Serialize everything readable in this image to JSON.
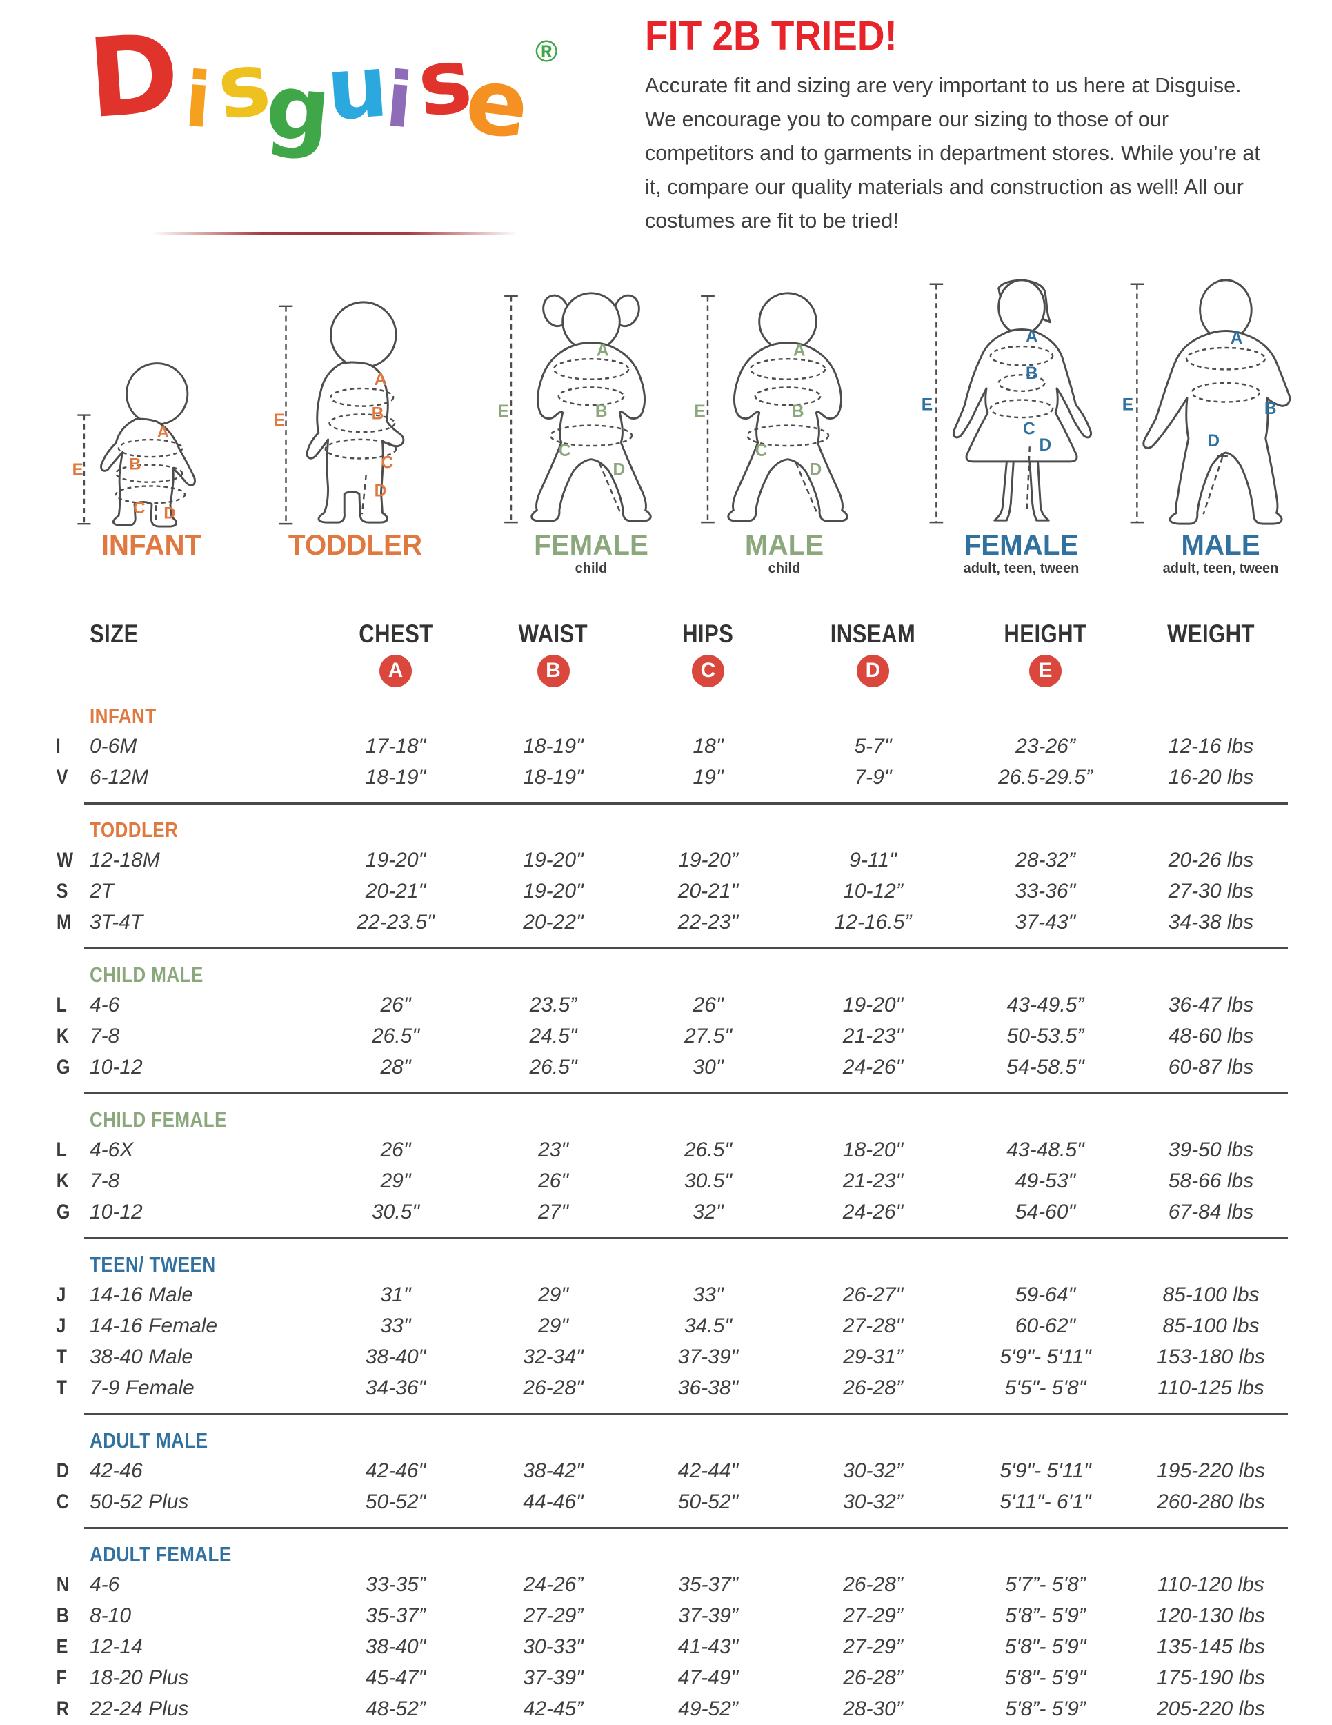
{
  "logo": {
    "letters": [
      {
        "ch": "D",
        "color": "#e0332b"
      },
      {
        "ch": "i",
        "color": "#f5a01f"
      },
      {
        "ch": "s",
        "color": "#efc11f"
      },
      {
        "ch": "g",
        "color": "#3fa748"
      },
      {
        "ch": "u",
        "color": "#2ba9df"
      },
      {
        "ch": "i",
        "color": "#8e6cb8"
      },
      {
        "ch": "s",
        "color": "#e0332b"
      },
      {
        "ch": "e",
        "color": "#f59122"
      }
    ],
    "registered": "®",
    "registered_color": "#3fa748"
  },
  "intro": {
    "title": "FIT 2B TRIED!",
    "title_color": "#e8242b",
    "body": "Accurate fit and sizing are very important to us here at Disguise. We encourage you to compare our sizing to those of our competitors and to garments in department stores. While you’re at it, compare our quality materials and construction as well! All our costumes are fit to be tried!"
  },
  "marks": [
    "A",
    "B",
    "C",
    "D",
    "E"
  ],
  "figures": [
    {
      "id": "infant",
      "title": "INFANT",
      "subtitle": "",
      "accent": "#e0793f"
    },
    {
      "id": "toddler",
      "title": "TODDLER",
      "subtitle": "",
      "accent": "#e0793f"
    },
    {
      "id": "child-female",
      "title": "FEMALE",
      "subtitle": "child",
      "accent": "#8aa87c"
    },
    {
      "id": "child-male",
      "title": "MALE",
      "subtitle": "child",
      "accent": "#8aa87c"
    },
    {
      "id": "adult-female",
      "title": "FEMALE",
      "subtitle": "adult, teen, tween",
      "accent": "#31719f"
    },
    {
      "id": "adult-male",
      "title": "MALE",
      "subtitle": "adult, teen, tween",
      "accent": "#31719f"
    }
  ],
  "table": {
    "columns": [
      "SIZE",
      "CHEST",
      "WAIST",
      "HIPS",
      "INSEAM",
      "HEIGHT",
      "WEIGHT"
    ],
    "badge_letters": [
      "A",
      "B",
      "C",
      "D",
      "E"
    ],
    "badge_color": "#d9473d",
    "sections": [
      {
        "name": "INFANT",
        "color": "#e0793f",
        "rows": [
          {
            "code": "I",
            "size": "0-6M",
            "values": [
              "17-18\"",
              "18-19\"",
              "18\"",
              "5-7\"",
              "23-26”",
              "12-16 lbs"
            ]
          },
          {
            "code": "V",
            "size": "6-12M",
            "values": [
              "18-19\"",
              "18-19\"",
              "19\"",
              "7-9\"",
              "26.5-29.5”",
              "16-20 lbs"
            ]
          }
        ]
      },
      {
        "name": "TODDLER",
        "color": "#e0793f",
        "rows": [
          {
            "code": "W",
            "size": "12-18M",
            "values": [
              "19-20\"",
              "19-20\"",
              "19-20”",
              "9-11\"",
              "28-32”",
              "20-26 lbs"
            ]
          },
          {
            "code": "S",
            "size": "2T",
            "values": [
              "20-21\"",
              "19-20\"",
              "20-21\"",
              "10-12”",
              "33-36\"",
              "27-30 lbs"
            ]
          },
          {
            "code": "M",
            "size": "3T-4T",
            "values": [
              "22-23.5\"",
              "20-22\"",
              "22-23\"",
              "12-16.5”",
              "37-43\"",
              "34-38 lbs"
            ]
          }
        ]
      },
      {
        "name": "CHILD MALE",
        "color": "#8aa87c",
        "rows": [
          {
            "code": "L",
            "size": "4-6",
            "values": [
              "26\"",
              "23.5”",
              "26\"",
              "19-20\"",
              "43-49.5”",
              "36-47 lbs"
            ]
          },
          {
            "code": "K",
            "size": "7-8",
            "values": [
              "26.5\"",
              "24.5\"",
              "27.5\"",
              "21-23\"",
              "50-53.5”",
              "48-60 lbs"
            ]
          },
          {
            "code": "G",
            "size": "10-12",
            "values": [
              "28\"",
              "26.5\"",
              "30\"",
              "24-26\"",
              "54-58.5\"",
              "60-87 lbs"
            ]
          }
        ]
      },
      {
        "name": "CHILD FEMALE",
        "color": "#8aa87c",
        "rows": [
          {
            "code": "L",
            "size": "4-6X",
            "values": [
              "26\"",
              "23\"",
              "26.5\"",
              "18-20\"",
              "43-48.5\"",
              "39-50 lbs"
            ]
          },
          {
            "code": "K",
            "size": "7-8",
            "values": [
              "29\"",
              "26\"",
              "30.5\"",
              "21-23\"",
              "49-53\"",
              "58-66 lbs"
            ]
          },
          {
            "code": "G",
            "size": "10-12",
            "values": [
              "30.5\"",
              "27\"",
              "32\"",
              "24-26\"",
              "54-60\"",
              "67-84 lbs"
            ]
          }
        ]
      },
      {
        "name": "TEEN/ TWEEN",
        "color": "#31719f",
        "rows": [
          {
            "code": "J",
            "size": "14-16 Male",
            "values": [
              "31\"",
              "29\"",
              "33\"",
              "26-27\"",
              "59-64\"",
              "85-100 lbs"
            ]
          },
          {
            "code": "J",
            "size": "14-16 Female",
            "values": [
              "33\"",
              "29\"",
              "34.5\"",
              "27-28\"",
              "60-62\"",
              "85-100 lbs"
            ]
          },
          {
            "code": "T",
            "size": "38-40 Male",
            "values": [
              "38-40\"",
              "32-34\"",
              "37-39\"",
              "29-31”",
              "5'9\"- 5'11\"",
              "153-180 lbs"
            ]
          },
          {
            "code": "T",
            "size": "7-9 Female",
            "values": [
              "34-36\"",
              "26-28\"",
              "36-38\"",
              "26-28”",
              "5'5\"- 5'8\"",
              "110-125 lbs"
            ]
          }
        ]
      },
      {
        "name": "ADULT MALE",
        "color": "#31719f",
        "rows": [
          {
            "code": "D",
            "size": "42-46",
            "values": [
              "42-46\"",
              "38-42\"",
              "42-44\"",
              "30-32”",
              "5'9\"- 5'11\"",
              "195-220 lbs"
            ]
          },
          {
            "code": "C",
            "size": "50-52 Plus",
            "values": [
              "50-52\"",
              "44-46\"",
              "50-52\"",
              "30-32”",
              "5'11\"- 6'1\"",
              "260-280 lbs"
            ]
          }
        ]
      },
      {
        "name": "ADULT FEMALE",
        "color": "#31719f",
        "rows": [
          {
            "code": "N",
            "size": "4-6",
            "values": [
              "33-35”",
              "24-26”",
              "35-37”",
              "26-28”",
              "5'7”- 5'8”",
              "110-120 lbs"
            ]
          },
          {
            "code": "B",
            "size": "8-10",
            "values": [
              "35-37”",
              "27-29”",
              "37-39”",
              "27-29”",
              "5'8”- 5'9”",
              "120-130 lbs"
            ]
          },
          {
            "code": "E",
            "size": "12-14",
            "values": [
              "38-40\"",
              "30-33\"",
              "41-43\"",
              "27-29”",
              "5'8\"- 5'9\"",
              "135-145 lbs"
            ]
          },
          {
            "code": "F",
            "size": "18-20 Plus",
            "values": [
              "45-47\"",
              "37-39\"",
              "47-49\"",
              "26-28”",
              "5'8\"- 5'9\"",
              "175-190 lbs"
            ]
          },
          {
            "code": "R",
            "size": "22-24 Plus",
            "values": [
              "48-52”",
              "42-45”",
              "49-52”",
              "28-30”",
              "5'8”- 5'9”",
              "205-220 lbs"
            ]
          }
        ]
      }
    ]
  }
}
